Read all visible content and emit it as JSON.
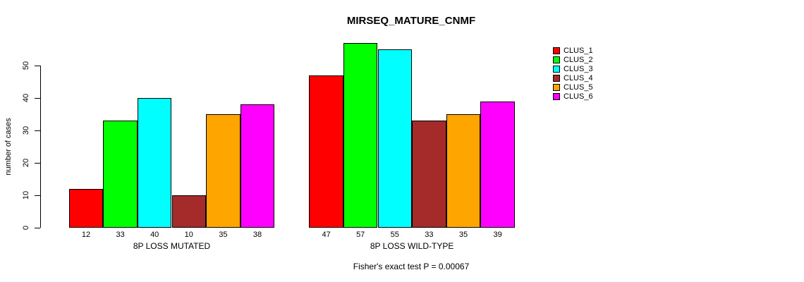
{
  "chart_data": {
    "type": "bar",
    "title": "MIRSEQ_MATURE_CNMF",
    "ylabel": "number of cases",
    "xlabel": "",
    "ylim": [
      0,
      50
    ],
    "yticks": [
      "0",
      "10",
      "20",
      "30",
      "40",
      "50"
    ],
    "ytick_values": [
      0,
      10,
      20,
      30,
      40,
      50
    ],
    "grid": false,
    "legend_position": "right",
    "series": [
      {
        "name": "CLUS_1",
        "color": "#FF0000"
      },
      {
        "name": "CLUS_2",
        "color": "#00FF00"
      },
      {
        "name": "CLUS_3",
        "color": "#00FFFF"
      },
      {
        "name": "CLUS_4",
        "color": "#A52A2A"
      },
      {
        "name": "CLUS_5",
        "color": "#FFA500"
      },
      {
        "name": "CLUS_6",
        "color": "#FF00FF"
      }
    ],
    "groups": [
      {
        "label": "8P LOSS MUTATED",
        "values": [
          12,
          33,
          40,
          10,
          35,
          38
        ]
      },
      {
        "label": "8P LOSS WILD-TYPE",
        "values": [
          47,
          57,
          55,
          33,
          35,
          39
        ]
      }
    ],
    "annotation": "Fisher's exact test P = 0.00067"
  }
}
